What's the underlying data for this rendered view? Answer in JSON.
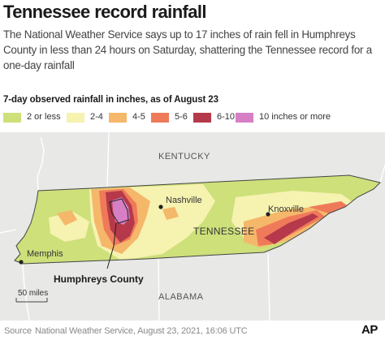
{
  "title": "Tennessee record rainfall",
  "subtitle": "The National Weather Service says up to 17 inches of rain fell in Humphreys County in less than 24 hours on Saturday, shattering the Tennessee record for a one-day rainfall",
  "legend": {
    "title": "7-day observed rainfall in inches, as of August 23",
    "items": [
      {
        "label": "2 or less",
        "color": "#cde07a"
      },
      {
        "label": "2-4",
        "color": "#f6f2b0"
      },
      {
        "label": "4-5",
        "color": "#f5b76a"
      },
      {
        "label": "5-6",
        "color": "#ef7a5a"
      },
      {
        "label": "6-10",
        "color": "#b5394a"
      },
      {
        "label": "10 inches or more",
        "color": "#d77fc4"
      }
    ]
  },
  "map": {
    "state_label": "TENNESSEE",
    "neighbor_labels": {
      "north": "KENTUCKY",
      "south": "ALABAMA"
    },
    "cities": [
      "Nashville",
      "Knoxville",
      "Memphis"
    ],
    "callout": "Humphreys County",
    "scale_label": "50 miles",
    "background_color": "#e8e8e6",
    "border_color": "#ffffff"
  },
  "footer": {
    "source_label": "Source",
    "source_text": "National Weather Service, August 23, 2021, 16:06 UTC",
    "logo": "AP"
  }
}
